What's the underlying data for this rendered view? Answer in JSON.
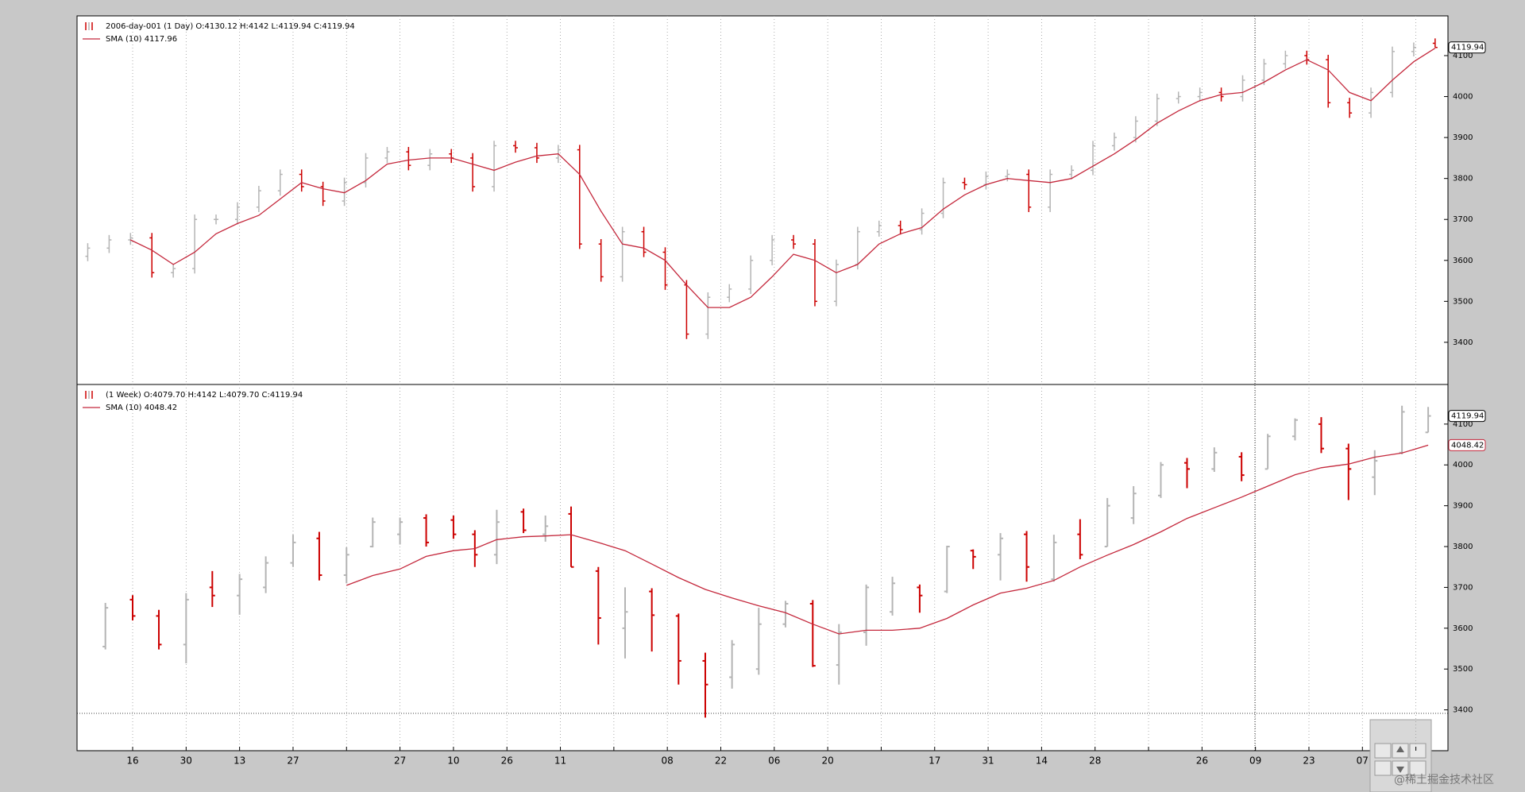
{
  "chart_data": [
    {
      "type": "ohlc",
      "legend": [
        "2006-day-001 (1 Day) O:4130.12 H:4142 L:4119.94 C:4119.94",
        "SMA (10) 4117.96"
      ],
      "up_color": "#b4b4b4",
      "down_color": "#cc0000",
      "sma_color": "#c4283c",
      "xlim": [
        0,
        256.4
      ],
      "ylim": [
        3297,
        4197
      ],
      "yticks": [
        3400,
        3500,
        3600,
        3700,
        3800,
        3900,
        4000,
        4100
      ],
      "price_tags": [
        {
          "value": 4119.94,
          "label": "4119.94",
          "color": "#000000"
        }
      ],
      "x": [
        2,
        6,
        10,
        14,
        18,
        22,
        26,
        30,
        34,
        38,
        42,
        46,
        50,
        54,
        58,
        62,
        66,
        70,
        74,
        78,
        82,
        86,
        90,
        94,
        98,
        102,
        106,
        110,
        114,
        118,
        122,
        126,
        130,
        134,
        138,
        142,
        146,
        150,
        154,
        158,
        162,
        166,
        170,
        174,
        178,
        182,
        186,
        190,
        194,
        198,
        202,
        206,
        210,
        214,
        218,
        222,
        226,
        230,
        234,
        238,
        242,
        246,
        250,
        254
      ],
      "open": [
        3610,
        3630,
        3650,
        3655,
        3570,
        3580,
        3700,
        3700,
        3730,
        3770,
        3810,
        3780,
        3745,
        3790,
        3850,
        3865,
        3832,
        3860,
        3850,
        3780,
        3880,
        3875,
        3850,
        3870,
        3640,
        3560,
        3670,
        3620,
        3540,
        3420,
        3510,
        3530,
        3600,
        3650,
        3640,
        3500,
        3590,
        3670,
        3685,
        3675,
        3715,
        3790,
        3785,
        3805,
        3810,
        3730,
        3810,
        3820,
        3880,
        3900,
        3940,
        3995,
        4000,
        4010,
        4000,
        4040,
        4080,
        4100,
        4090,
        3985,
        3960,
        4010,
        4110,
        4130.12
      ],
      "high": [
        3642,
        3662,
        3667,
        3667,
        3592,
        3712,
        3712,
        3742,
        3782,
        3822,
        3822,
        3792,
        3802,
        3862,
        3877,
        3877,
        3872,
        3872,
        3862,
        3892,
        3892,
        3887,
        3882,
        3882,
        3652,
        3682,
        3682,
        3632,
        3552,
        3522,
        3542,
        3612,
        3662,
        3662,
        3652,
        3602,
        3682,
        3697,
        3697,
        3727,
        3802,
        3802,
        3817,
        3822,
        3822,
        3822,
        3832,
        3892,
        3912,
        3952,
        4007,
        4012,
        4022,
        4022,
        4052,
        4092,
        4112,
        4112,
        4102,
        3997,
        4022,
        4122,
        4132,
        4142
      ],
      "low": [
        3598,
        3618,
        3638,
        3558,
        3558,
        3568,
        3688,
        3688,
        3718,
        3758,
        3768,
        3733,
        3733,
        3778,
        3838,
        3820,
        3820,
        3838,
        3768,
        3768,
        3863,
        3838,
        3838,
        3628,
        3548,
        3548,
        3608,
        3528,
        3408,
        3408,
        3498,
        3518,
        3588,
        3628,
        3488,
        3488,
        3578,
        3658,
        3663,
        3663,
        3703,
        3773,
        3773,
        3793,
        3718,
        3718,
        3798,
        3808,
        3868,
        3888,
        3928,
        3983,
        3988,
        3988,
        3988,
        4028,
        4068,
        4078,
        3973,
        3948,
        3948,
        3998,
        4098,
        4119.94
      ],
      "close": [
        3630,
        3650,
        3655,
        3570,
        3580,
        3700,
        3700,
        3730,
        3770,
        3810,
        3780,
        3745,
        3790,
        3850,
        3865,
        3832,
        3860,
        3850,
        3780,
        3880,
        3875,
        3850,
        3870,
        3640,
        3560,
        3670,
        3620,
        3540,
        3420,
        3510,
        3530,
        3600,
        3650,
        3640,
        3500,
        3590,
        3670,
        3685,
        3675,
        3715,
        3790,
        3785,
        3805,
        3810,
        3730,
        3810,
        3820,
        3880,
        3900,
        3940,
        3995,
        4000,
        4010,
        4000,
        4040,
        4080,
        4100,
        4090,
        3985,
        3960,
        4010,
        4110,
        4120,
        4119.94
      ],
      "sma": [
        null,
        null,
        3650,
        3625,
        3590,
        3620,
        3665,
        3690,
        3710,
        3750,
        3790,
        3775,
        3765,
        3795,
        3835,
        3845,
        3850,
        3850,
        3835,
        3820,
        3840,
        3855,
        3860,
        3810,
        3720,
        3640,
        3630,
        3600,
        3540,
        3485,
        3485,
        3510,
        3560,
        3615,
        3600,
        3570,
        3590,
        3640,
        3665,
        3680,
        3725,
        3760,
        3785,
        3800,
        3795,
        3790,
        3800,
        3830,
        3860,
        3895,
        3935,
        3965,
        3990,
        4005,
        4010,
        4035,
        4065,
        4090,
        4065,
        4010,
        3990,
        4040,
        4085,
        4117.96
      ]
    },
    {
      "type": "ohlc",
      "legend": [
        "(1 Week) O:4079.70 H:4142 L:4079.70 C:4119.94",
        "SMA (10) 4048.42"
      ],
      "up_color": "#b4b4b4",
      "down_color": "#cc0000",
      "sma_color": "#c4283c",
      "xlim": [
        0,
        256.4
      ],
      "ylim": [
        3300,
        4197
      ],
      "yticks": [
        3400,
        3500,
        3600,
        3700,
        3800,
        3900,
        4000,
        4100
      ],
      "xticks": [
        {
          "value": 10.4,
          "label": "16"
        },
        {
          "value": 20.4,
          "label": "30"
        },
        {
          "value": 30.4,
          "label": "13"
        },
        {
          "value": 40.4,
          "label": "27"
        },
        {
          "value": 50.4,
          "label": null
        },
        {
          "value": 60.4,
          "label": "27"
        },
        {
          "value": 70.4,
          "label": "10"
        },
        {
          "value": 80.4,
          "label": "26"
        },
        {
          "value": 90.4,
          "label": "11"
        },
        {
          "value": 100.4,
          "label": null
        },
        {
          "value": 110.4,
          "label": "08"
        },
        {
          "value": 120.4,
          "label": "22"
        },
        {
          "value": 130.4,
          "label": "06"
        },
        {
          "value": 140.4,
          "label": "20"
        },
        {
          "value": 150.4,
          "label": null
        },
        {
          "value": 160.4,
          "label": "17"
        },
        {
          "value": 170.4,
          "label": "31"
        },
        {
          "value": 180.4,
          "label": "14"
        },
        {
          "value": 190.4,
          "label": "28"
        },
        {
          "value": 200.4,
          "label": null
        },
        {
          "value": 210.4,
          "label": "26"
        },
        {
          "value": 220.4,
          "label": "09"
        },
        {
          "value": 230.4,
          "label": "23"
        },
        {
          "value": 240.4,
          "label": "07"
        },
        {
          "value": 250.4,
          "label": null
        }
      ],
      "price_tags": [
        {
          "value": 4119.94,
          "label": "4119.94",
          "color": "#000000"
        },
        {
          "value": 4048.42,
          "label": "4048.42",
          "color": "#c4283c"
        }
      ],
      "x": [
        5.3,
        10.4,
        15.3,
        20.4,
        25.3,
        30.4,
        35.3,
        40.4,
        45.3,
        50.4,
        55.3,
        60.4,
        65.3,
        70.4,
        74.4,
        78.5,
        83.5,
        87.6,
        92.4,
        97.5,
        102.5,
        107.5,
        112.5,
        117.5,
        122.5,
        127.5,
        132.5,
        137.6,
        142.5,
        147.6,
        152.5,
        157.6,
        162.7,
        167.6,
        172.7,
        177.6,
        182.7,
        187.6,
        192.7,
        197.6,
        202.7,
        207.6,
        212.7,
        217.8,
        222.7,
        227.8,
        232.7,
        237.8,
        242.7,
        247.8,
        252.7
      ],
      "open": [
        3555,
        3670,
        3630,
        3560,
        3700,
        3680,
        3700,
        3760,
        3820,
        3730,
        3800,
        3830,
        3870,
        3865,
        3830,
        3780,
        3885,
        3830,
        3880,
        3740,
        3600,
        3690,
        3630,
        3520,
        3480,
        3500,
        3610,
        3660,
        3510,
        3590,
        3640,
        3700,
        3690,
        3790,
        3780,
        3830,
        3720,
        3830,
        3800,
        3870,
        3925,
        4005,
        3990,
        4020,
        3990,
        4070,
        4100,
        4040,
        3970,
        4030,
        4079.7
      ],
      "high": [
        3662,
        3681,
        3645,
        3686,
        3740,
        3733,
        3776,
        3829,
        3836,
        3798,
        3871,
        3871,
        3879,
        3876,
        3840,
        3890,
        3893,
        3876,
        3898,
        3750,
        3700,
        3698,
        3636,
        3540,
        3571,
        3650,
        3667,
        3669,
        3610,
        3707,
        3726,
        3707,
        3802,
        3793,
        3833,
        3838,
        3829,
        3867,
        3919,
        3948,
        4007,
        4017,
        4043,
        4031,
        4076,
        4114,
        4117,
        4052,
        4036,
        4145,
        4142
      ],
      "low": [
        3548,
        3619,
        3548,
        3514,
        3652,
        3633,
        3686,
        3750,
        3717,
        3710,
        3798,
        3805,
        3800,
        3819,
        3750,
        3757,
        3833,
        3812,
        3750,
        3560,
        3526,
        3543,
        3462,
        3381,
        3452,
        3486,
        3602,
        3505,
        3462,
        3557,
        3631,
        3638,
        3686,
        3745,
        3717,
        3714,
        3714,
        3769,
        3800,
        3855,
        3919,
        3943,
        3983,
        3960,
        3990,
        4060,
        4029,
        3914,
        3926,
        4026,
        4079.7
      ],
      "close": [
        3650,
        3630,
        3560,
        3670,
        3680,
        3720,
        3760,
        3810,
        3730,
        3780,
        3860,
        3860,
        3810,
        3830,
        3780,
        3860,
        3840,
        3850,
        3750,
        3625,
        3640,
        3632,
        3520,
        3462,
        3560,
        3610,
        3660,
        3508,
        3590,
        3700,
        3710,
        3680,
        3800,
        3775,
        3820,
        3750,
        3810,
        3780,
        3900,
        3930,
        4000,
        3990,
        4030,
        3975,
        4070,
        4110,
        4040,
        3990,
        4010,
        4130,
        4119.94
      ],
      "sma": [
        null,
        null,
        null,
        null,
        null,
        null,
        null,
        null,
        null,
        3705,
        3729,
        3745,
        3776,
        3790,
        3795,
        3817,
        3824,
        3826,
        3829,
        3810,
        3790,
        3757,
        3724,
        3695,
        3674,
        3655,
        3638,
        3610,
        3586,
        3595,
        3595,
        3600,
        3624,
        3657,
        3686,
        3698,
        3717,
        3750,
        3779,
        3805,
        3836,
        3869,
        3895,
        3921,
        3948,
        3976,
        3993,
        4002,
        4019,
        4029,
        4048.42
      ]
    }
  ],
  "watermark": "@稀土掘金技术社区"
}
